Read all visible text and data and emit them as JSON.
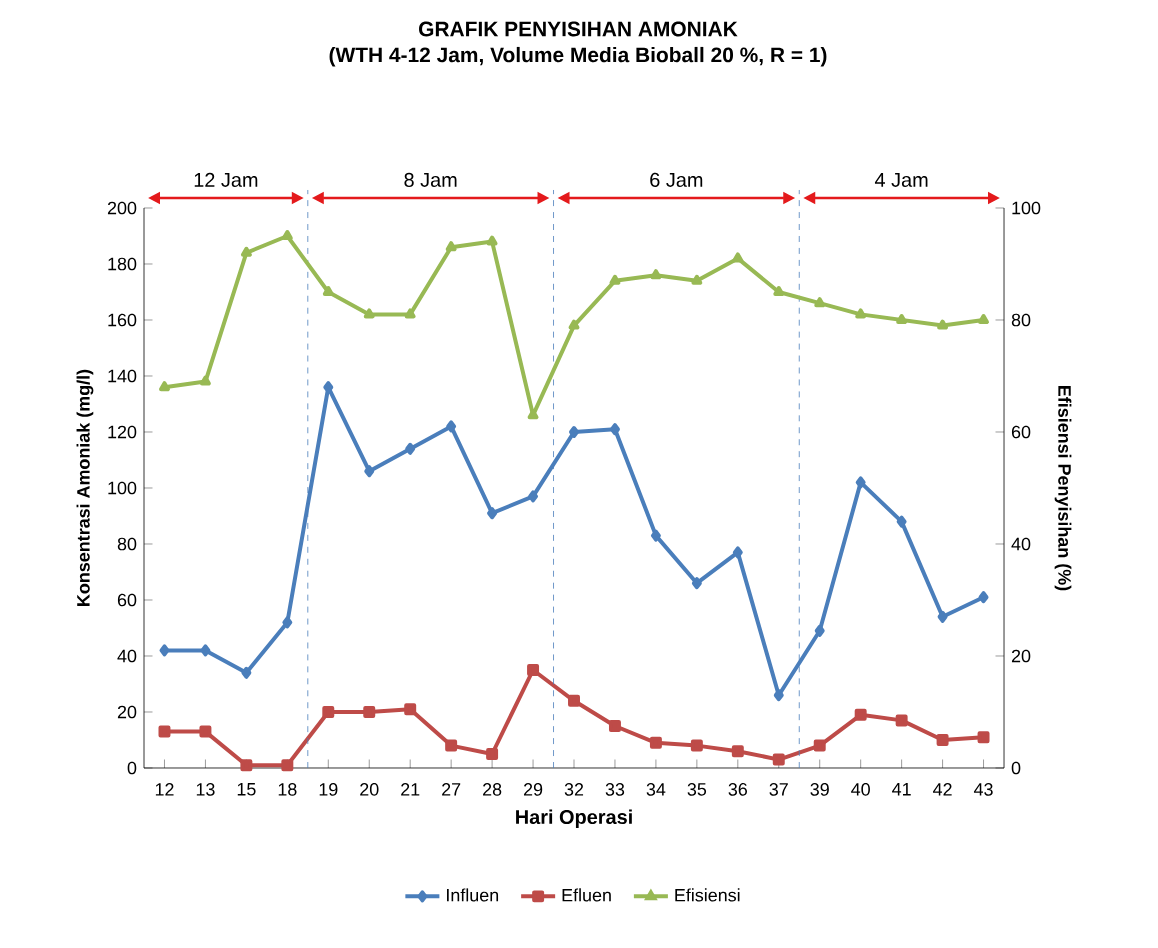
{
  "chart_data": {
    "type": "line",
    "title": "GRAFIK PENYISIHAN AMONIAK",
    "subtitle": "(WTH 4-12 Jam, Volume Media Bioball 20 %, R = 1)",
    "xlabel": "Hari Operasi",
    "ylabel": "Konsentrasi Amoniak (mg/l)",
    "y2label": "Efisiensi Penyisihan (%)",
    "categories": [
      "12",
      "13",
      "15",
      "18",
      "19",
      "20",
      "21",
      "27",
      "28",
      "29",
      "32",
      "33",
      "34",
      "35",
      "36",
      "37",
      "39",
      "40",
      "41",
      "42",
      "43"
    ],
    "series": [
      {
        "name": "Influen",
        "color": "#4a7ebb",
        "marker": "diamond",
        "values": [
          42,
          42,
          34,
          52,
          136,
          106,
          114,
          122,
          91,
          97,
          120,
          121,
          83,
          66,
          77,
          26,
          49,
          102,
          88,
          54,
          61
        ]
      },
      {
        "name": "Efluen",
        "color": "#be4b48",
        "marker": "square",
        "values": [
          13,
          13,
          1,
          1,
          20,
          20,
          21,
          8,
          5,
          35,
          24,
          15,
          9,
          8,
          6,
          3,
          8,
          19,
          17,
          10,
          11
        ]
      },
      {
        "name": "Efisiensi",
        "color": "#98b954",
        "marker": "triangle",
        "axis": "y2",
        "values": [
          68,
          69,
          92,
          95,
          85,
          81,
          81,
          93,
          94,
          63,
          79,
          87,
          88,
          87,
          91,
          85,
          83,
          81,
          80,
          79,
          80
        ]
      }
    ],
    "ylim": [
      0,
      200
    ],
    "yticks": [
      0,
      20,
      40,
      60,
      80,
      100,
      120,
      140,
      160,
      180,
      200
    ],
    "y2lim": [
      0,
      100
    ],
    "y2ticks": [
      0,
      20,
      40,
      60,
      80,
      100
    ],
    "annotations": [
      "12 Jam",
      "8 Jam",
      "6 Jam",
      "4 Jam"
    ],
    "legend": "bottom",
    "line_style": "solid"
  }
}
